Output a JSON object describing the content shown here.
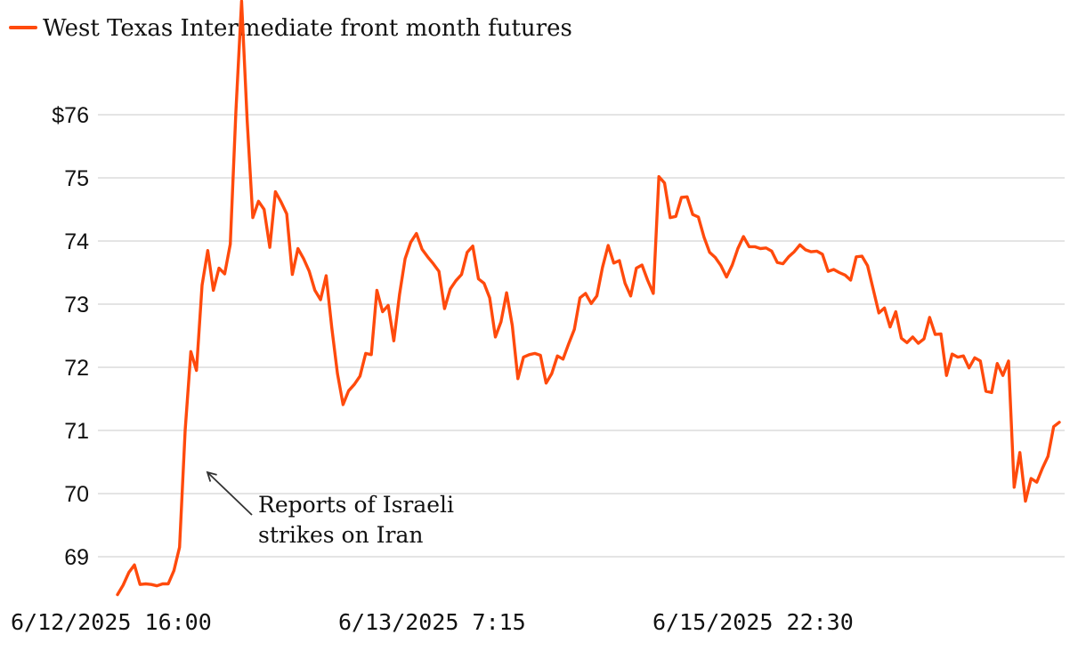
{
  "chart_data": {
    "type": "line",
    "title": "",
    "xlabel": "",
    "ylabel": "",
    "ylim": [
      68.4,
      77.9
    ],
    "grid": true,
    "legend_position": "top-left",
    "colors": {
      "series": "#ff4a0c",
      "grid": "#dcdcdc",
      "text": "#111111",
      "arrow": "#333333"
    },
    "y_ticks": [
      {
        "value": 69,
        "label": "69"
      },
      {
        "value": 70,
        "label": "70"
      },
      {
        "value": 71,
        "label": "71"
      },
      {
        "value": 72,
        "label": "72"
      },
      {
        "value": 73,
        "label": "73"
      },
      {
        "value": 74,
        "label": "74"
      },
      {
        "value": 75,
        "label": "75"
      },
      {
        "value": 76,
        "label": "$76"
      }
    ],
    "x_ticks": [
      {
        "index": 0,
        "label": "6/12/2025 16:00"
      },
      {
        "index": 61,
        "label": "6/13/2025 7:15"
      },
      {
        "index": 120,
        "label": "6/15/2025 22:30"
      }
    ],
    "series": [
      {
        "name": "West Texas Intermediate front month futures",
        "values": [
          68.4,
          68.55,
          68.75,
          68.87,
          68.56,
          68.57,
          68.56,
          68.54,
          68.57,
          68.57,
          68.78,
          69.15,
          71.0,
          72.25,
          71.95,
          73.3,
          73.85,
          73.22,
          73.57,
          73.48,
          73.95,
          76.05,
          77.8,
          75.9,
          74.37,
          74.63,
          74.5,
          73.9,
          74.78,
          74.62,
          74.43,
          73.47,
          73.88,
          73.72,
          73.52,
          73.22,
          73.07,
          73.45,
          72.63,
          71.9,
          71.41,
          71.63,
          71.73,
          71.86,
          72.22,
          72.2,
          73.22,
          72.88,
          72.98,
          72.42,
          73.15,
          73.72,
          73.98,
          74.12,
          73.87,
          73.75,
          73.64,
          73.52,
          72.93,
          73.24,
          73.37,
          73.47,
          73.82,
          73.92,
          73.4,
          73.33,
          73.1,
          72.48,
          72.72,
          73.18,
          72.66,
          71.82,
          72.16,
          72.2,
          72.22,
          72.19,
          71.75,
          71.9,
          72.18,
          72.13,
          72.37,
          72.6,
          73.1,
          73.17,
          73.01,
          73.13,
          73.58,
          73.93,
          73.65,
          73.69,
          73.33,
          73.13,
          73.57,
          73.62,
          73.38,
          73.17,
          75.02,
          74.92,
          74.37,
          74.39,
          74.69,
          74.7,
          74.42,
          74.38,
          74.06,
          73.82,
          73.74,
          73.61,
          73.43,
          73.62,
          73.88,
          74.07,
          73.91,
          73.91,
          73.88,
          73.89,
          73.84,
          73.66,
          73.64,
          73.75,
          73.83,
          73.94,
          73.86,
          73.83,
          73.84,
          73.79,
          73.52,
          73.55,
          73.5,
          73.46,
          73.38,
          73.75,
          73.76,
          73.61,
          73.24,
          72.86,
          72.94,
          72.64,
          72.88,
          72.46,
          72.39,
          72.48,
          72.38,
          72.45,
          72.79,
          72.52,
          72.53,
          71.87,
          72.21,
          72.16,
          72.18,
          71.99,
          72.15,
          72.1,
          71.62,
          71.6,
          72.06,
          71.87,
          72.1,
          70.1,
          70.65,
          69.88,
          70.24,
          70.18,
          70.4,
          70.59,
          71.06,
          71.13
        ]
      }
    ],
    "annotation": {
      "lines": [
        "Reports of Israeli",
        "strikes on Iran"
      ],
      "points_to_index": 14
    }
  }
}
